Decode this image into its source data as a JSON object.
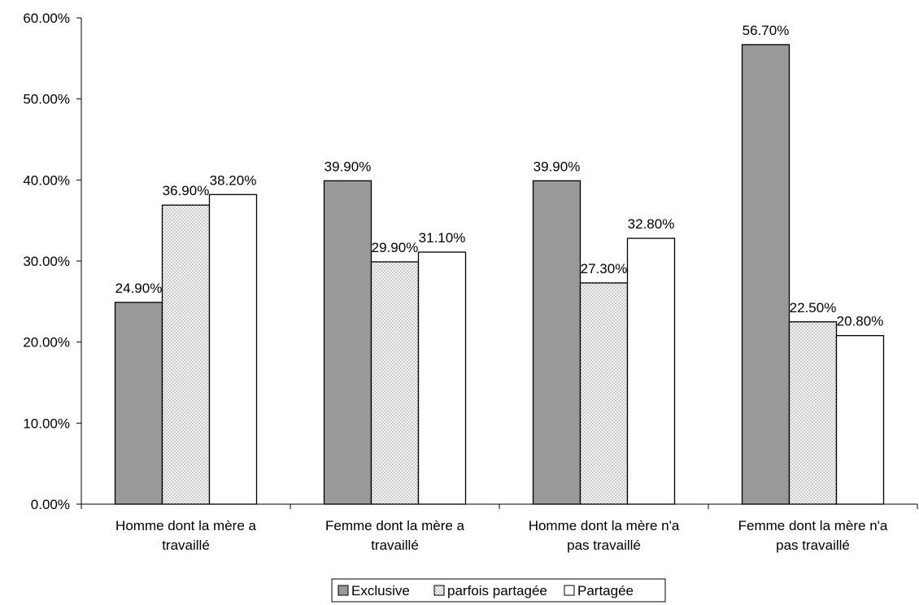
{
  "chart_data": {
    "type": "bar",
    "title": "",
    "xlabel": "",
    "ylabel": "",
    "ylim": [
      0,
      0.6
    ],
    "yticks": [
      0,
      0.1,
      0.2,
      0.3,
      0.4,
      0.5,
      0.6
    ],
    "ytick_labels": [
      "0.00%",
      "10.00%",
      "20.00%",
      "30.00%",
      "40.00%",
      "50.00%",
      "60.00%"
    ],
    "categories": [
      {
        "line1": "Homme dont la mère a",
        "line2": "travaillé"
      },
      {
        "line1": "Femme dont la mère a",
        "line2": "travaillé"
      },
      {
        "line1": "Homme dont la mère n'a",
        "line2": "pas travaillé"
      },
      {
        "line1": "Femme dont la mère n'a",
        "line2": "pas travaillé"
      }
    ],
    "series": [
      {
        "name": "Exclusive",
        "values": [
          0.249,
          0.399,
          0.399,
          0.567
        ],
        "labels": [
          "24.90%",
          "39.90%",
          "39.90%",
          "56.70%"
        ],
        "color": "#999999",
        "pattern": "solid"
      },
      {
        "name": "parfois partagée",
        "values": [
          0.369,
          0.299,
          0.273,
          0.225
        ],
        "labels": [
          "36.90%",
          "29.90%",
          "27.30%",
          "22.50%"
        ],
        "color": "#e8e8e8",
        "pattern": "dots"
      },
      {
        "name": "Partagée",
        "values": [
          0.382,
          0.311,
          0.328,
          0.208
        ],
        "labels": [
          "38.20%",
          "31.10%",
          "32.80%",
          "20.80%"
        ],
        "color": "#ffffff",
        "pattern": "solid"
      }
    ],
    "grid": false,
    "legend": "bottom"
  }
}
